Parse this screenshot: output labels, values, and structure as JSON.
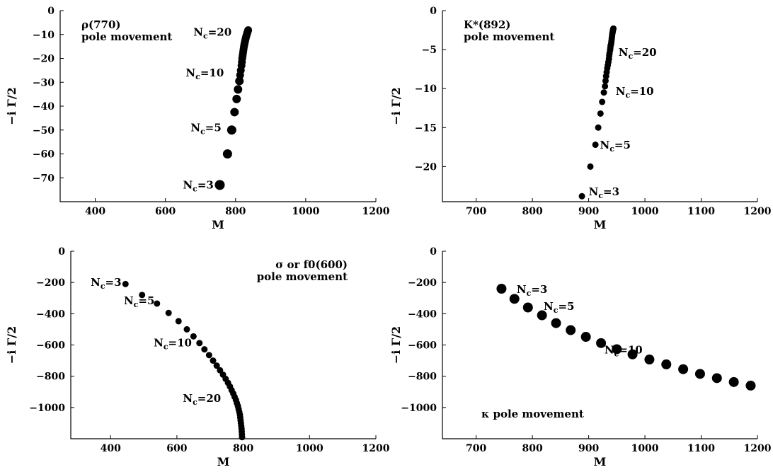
{
  "chart_data": [
    {
      "type": "scatter",
      "xlabel": "M",
      "ylabel": "−i Γ/2",
      "xlim": [
        300,
        1200
      ],
      "ylim": [
        -80,
        0
      ],
      "xticks": [
        400,
        600,
        800,
        1000,
        1200
      ],
      "xtick_labels": [
        "400",
        "600",
        "800",
        "1000",
        "1200"
      ],
      "yticks": [
        0,
        -10,
        -20,
        -30,
        -40,
        -50,
        -60,
        -70
      ],
      "ytick_labels": [
        "0",
        "−10",
        "−20",
        "−30",
        "−40",
        "−50",
        "−60",
        "−70"
      ],
      "title_lines": [
        "ρ(770)",
        "pole movement"
      ],
      "title_position": "top-left",
      "points": [
        {
          "x": 755,
          "y": -73,
          "r": 7
        },
        {
          "x": 777,
          "y": -60,
          "r": 6.5
        },
        {
          "x": 789,
          "y": -50,
          "r": 6.5
        },
        {
          "x": 797,
          "y": -42.5,
          "r": 6
        },
        {
          "x": 803,
          "y": -37,
          "r": 6
        },
        {
          "x": 807,
          "y": -33,
          "r": 6
        },
        {
          "x": 811,
          "y": -29.5,
          "r": 6
        },
        {
          "x": 813,
          "y": -27,
          "r": 5.5
        },
        {
          "x": 815,
          "y": -25,
          "r": 5.5
        },
        {
          "x": 817,
          "y": -23,
          "r": 5.5
        },
        {
          "x": 818,
          "y": -21.5,
          "r": 5.5
        },
        {
          "x": 819,
          "y": -20,
          "r": 5.5
        },
        {
          "x": 820,
          "y": -19,
          "r": 5.5
        },
        {
          "x": 821,
          "y": -18,
          "r": 5.5
        },
        {
          "x": 822,
          "y": -17,
          "r": 5.5
        },
        {
          "x": 823,
          "y": -16,
          "r": 5.5
        },
        {
          "x": 824,
          "y": -15,
          "r": 5.5
        },
        {
          "x": 825,
          "y": -14.2,
          "r": 5.5
        },
        {
          "x": 826,
          "y": -13.5,
          "r": 5.5
        },
        {
          "x": 827,
          "y": -12.8,
          "r": 5.5
        },
        {
          "x": 828,
          "y": -12.2,
          "r": 5.5
        },
        {
          "x": 829,
          "y": -11.6,
          "r": 5.5
        },
        {
          "x": 830,
          "y": -11,
          "r": 5.5
        },
        {
          "x": 831,
          "y": -10.5,
          "r": 5.5
        },
        {
          "x": 832,
          "y": -10,
          "r": 5.5
        },
        {
          "x": 833,
          "y": -9.5,
          "r": 5.5
        },
        {
          "x": 834,
          "y": -9,
          "r": 5.5
        },
        {
          "x": 835,
          "y": -8.6,
          "r": 5.5
        },
        {
          "x": 836,
          "y": -8.2,
          "r": 5.5
        }
      ],
      "annotations": [
        {
          "base": "N",
          "sub": "c",
          "rest": "=20",
          "x": 680,
          "y": -10.5
        },
        {
          "base": "N",
          "sub": "c",
          "rest": "=10",
          "x": 658,
          "y": -27.5
        },
        {
          "base": "N",
          "sub": "c",
          "rest": "=5",
          "x": 672,
          "y": -50.5
        },
        {
          "base": "N",
          "sub": "c",
          "rest": "=3",
          "x": 650,
          "y": -74.5
        }
      ]
    },
    {
      "type": "scatter",
      "xlabel": "M",
      "ylabel": "−i Γ/2",
      "xlim": [
        640,
        1200
      ],
      "ylim": [
        -24.5,
        0
      ],
      "xticks": [
        700,
        800,
        900,
        1000,
        1100,
        1200
      ],
      "xtick_labels": [
        "700",
        "800",
        "900",
        "1000",
        "1100",
        "1200"
      ],
      "yticks": [
        0,
        -5,
        -10,
        -15,
        -20
      ],
      "ytick_labels": [
        "0",
        "−5",
        "−10",
        "−15",
        "−20"
      ],
      "title_lines": [
        "K*(892)",
        "pole movement"
      ],
      "title_position": "top-left",
      "points": [
        {
          "x": 888,
          "y": -23.8,
          "r": 4.5
        },
        {
          "x": 903,
          "y": -20,
          "r": 4.5
        },
        {
          "x": 912,
          "y": -17.2,
          "r": 4.5
        },
        {
          "x": 917,
          "y": -15,
          "r": 4.5
        },
        {
          "x": 921,
          "y": -13.2,
          "r": 4.5
        },
        {
          "x": 924,
          "y": -11.7,
          "r": 4.5
        },
        {
          "x": 927,
          "y": -10.5,
          "r": 4.5
        },
        {
          "x": 929,
          "y": -9.7,
          "r": 4.5
        },
        {
          "x": 930,
          "y": -9,
          "r": 4.5
        },
        {
          "x": 931,
          "y": -8.4,
          "r": 4.5
        },
        {
          "x": 932,
          "y": -7.9,
          "r": 4.5
        },
        {
          "x": 933,
          "y": -7.4,
          "r": 4.5
        },
        {
          "x": 934,
          "y": -7,
          "r": 4.5
        },
        {
          "x": 935,
          "y": -6.6,
          "r": 4.5
        },
        {
          "x": 936,
          "y": -6.2,
          "r": 4.5
        },
        {
          "x": 936.5,
          "y": -5.8,
          "r": 4.5
        },
        {
          "x": 937,
          "y": -5.5,
          "r": 4.5
        },
        {
          "x": 938,
          "y": -5.1,
          "r": 4.5
        },
        {
          "x": 938.5,
          "y": -4.8,
          "r": 4.5
        },
        {
          "x": 939,
          "y": -4.5,
          "r": 4.5
        },
        {
          "x": 940,
          "y": -4.2,
          "r": 4.5
        },
        {
          "x": 940.5,
          "y": -3.9,
          "r": 4.5
        },
        {
          "x": 941,
          "y": -3.6,
          "r": 4.5
        },
        {
          "x": 941.5,
          "y": -3.3,
          "r": 4.5
        },
        {
          "x": 942,
          "y": -3,
          "r": 4.5
        },
        {
          "x": 942.5,
          "y": -2.8,
          "r": 4.5
        },
        {
          "x": 943,
          "y": -2.6,
          "r": 4.5
        },
        {
          "x": 943.5,
          "y": -2.4,
          "r": 4.5
        },
        {
          "x": 944,
          "y": -2.3,
          "r": 4.5
        }
      ],
      "annotations": [
        {
          "base": "N",
          "sub": "c",
          "rest": "=20",
          "x": 953,
          "y": -5.8
        },
        {
          "base": "N",
          "sub": "c",
          "rest": "=10",
          "x": 948,
          "y": -10.8
        },
        {
          "base": "N",
          "sub": "c",
          "rest": "=5",
          "x": 920,
          "y": -17.7
        },
        {
          "base": "N",
          "sub": "c",
          "rest": "=3",
          "x": 900,
          "y": -23.7
        }
      ]
    },
    {
      "type": "scatter",
      "xlabel": "M",
      "ylabel": "−i Γ/2",
      "xlim": [
        280,
        1200
      ],
      "ylim": [
        -1200,
        0
      ],
      "xticks": [
        400,
        600,
        800,
        1000,
        1200
      ],
      "xtick_labels": [
        "400",
        "600",
        "800",
        "1000",
        "1200"
      ],
      "yticks": [
        0,
        -200,
        -400,
        -600,
        -800,
        -1000
      ],
      "ytick_labels": [
        "0",
        "−200",
        "−400",
        "−600",
        "−800",
        "−1000"
      ],
      "title_lines": [
        "σ or f0(600)",
        "pole movement"
      ],
      "title_position": "top-right",
      "points": [
        {
          "x": 445,
          "y": -210,
          "r": 4.5
        },
        {
          "x": 495,
          "y": -280,
          "r": 4.5
        },
        {
          "x": 540,
          "y": -335,
          "r": 4.5
        },
        {
          "x": 575,
          "y": -395,
          "r": 4.5
        },
        {
          "x": 605,
          "y": -448,
          "r": 4.5
        },
        {
          "x": 630,
          "y": -500,
          "r": 4.5
        },
        {
          "x": 650,
          "y": -545,
          "r": 4.5
        },
        {
          "x": 668,
          "y": -588,
          "r": 4.5
        },
        {
          "x": 683,
          "y": -628,
          "r": 4.5
        },
        {
          "x": 697,
          "y": -665,
          "r": 4.5
        },
        {
          "x": 709,
          "y": -700,
          "r": 4.5
        },
        {
          "x": 720,
          "y": -732,
          "r": 4.5
        },
        {
          "x": 730,
          "y": -762,
          "r": 4.5
        },
        {
          "x": 739,
          "y": -790,
          "r": 4.5
        },
        {
          "x": 747,
          "y": -817,
          "r": 4.5
        },
        {
          "x": 754,
          "y": -842,
          "r": 4.5
        },
        {
          "x": 760,
          "y": -866,
          "r": 4.5
        },
        {
          "x": 765,
          "y": -889,
          "r": 4.5
        },
        {
          "x": 770,
          "y": -911,
          "r": 4.5
        },
        {
          "x": 774,
          "y": -932,
          "r": 4.5
        },
        {
          "x": 778,
          "y": -952,
          "r": 4.5
        },
        {
          "x": 781,
          "y": -972,
          "r": 4.5
        },
        {
          "x": 784,
          "y": -991,
          "r": 4.5
        },
        {
          "x": 786,
          "y": -1010,
          "r": 4.5
        },
        {
          "x": 788,
          "y": -1028,
          "r": 4.5
        },
        {
          "x": 790,
          "y": -1046,
          "r": 4.5
        },
        {
          "x": 791,
          "y": -1064,
          "r": 4.5
        },
        {
          "x": 792,
          "y": -1082,
          "r": 4.5
        },
        {
          "x": 793,
          "y": -1100,
          "r": 4.5
        },
        {
          "x": 794,
          "y": -1118,
          "r": 4.5
        },
        {
          "x": 795,
          "y": -1136,
          "r": 4.5
        },
        {
          "x": 795.5,
          "y": -1154,
          "r": 4.5
        },
        {
          "x": 796,
          "y": -1172,
          "r": 4.5
        },
        {
          "x": 796.5,
          "y": -1190,
          "r": 4.5
        }
      ],
      "annotations": [
        {
          "base": "N",
          "sub": "c",
          "rest": "=3",
          "x": 340,
          "y": -222
        },
        {
          "base": "N",
          "sub": "c",
          "rest": "=5",
          "x": 440,
          "y": -340
        },
        {
          "base": "N",
          "sub": "c",
          "rest": "=10",
          "x": 530,
          "y": -610
        },
        {
          "base": "N",
          "sub": "c",
          "rest": "=20",
          "x": 618,
          "y": -965
        }
      ]
    },
    {
      "type": "scatter",
      "xlabel": "M",
      "ylabel": "−i Γ/2",
      "xlim": [
        640,
        1200
      ],
      "ylim": [
        -1200,
        0
      ],
      "xticks": [
        700,
        800,
        900,
        1000,
        1100,
        1200
      ],
      "xtick_labels": [
        "700",
        "800",
        "900",
        "1000",
        "1100",
        "1200"
      ],
      "yticks": [
        0,
        -200,
        -400,
        -600,
        -800,
        -1000
      ],
      "ytick_labels": [
        "0",
        "−200",
        "−400",
        "−600",
        "−800",
        "−1000"
      ],
      "title_lines": [
        "κ pole movement"
      ],
      "title_position": "bottom-left",
      "points": [
        {
          "x": 745,
          "y": -240,
          "r": 7
        },
        {
          "x": 768,
          "y": -305,
          "r": 7
        },
        {
          "x": 792,
          "y": -360,
          "r": 7
        },
        {
          "x": 817,
          "y": -410,
          "r": 7
        },
        {
          "x": 842,
          "y": -460,
          "r": 7
        },
        {
          "x": 868,
          "y": -505,
          "r": 7
        },
        {
          "x": 895,
          "y": -548,
          "r": 7
        },
        {
          "x": 922,
          "y": -588,
          "r": 7
        },
        {
          "x": 950,
          "y": -627,
          "r": 7
        },
        {
          "x": 978,
          "y": -660,
          "r": 7
        },
        {
          "x": 1008,
          "y": -693,
          "r": 7
        },
        {
          "x": 1038,
          "y": -724,
          "r": 7
        },
        {
          "x": 1068,
          "y": -755,
          "r": 7
        },
        {
          "x": 1098,
          "y": -785,
          "r": 7
        },
        {
          "x": 1128,
          "y": -812,
          "r": 7
        },
        {
          "x": 1158,
          "y": -837,
          "r": 7
        },
        {
          "x": 1188,
          "y": -860,
          "r": 7
        }
      ],
      "annotations": [
        {
          "base": "N",
          "sub": "c",
          "rest": "=3",
          "x": 772,
          "y": -268
        },
        {
          "base": "N",
          "sub": "c",
          "rest": "=5",
          "x": 820,
          "y": -375
        },
        {
          "base": "N",
          "sub": "c",
          "rest": "=10",
          "x": 928,
          "y": -655
        }
      ]
    }
  ]
}
